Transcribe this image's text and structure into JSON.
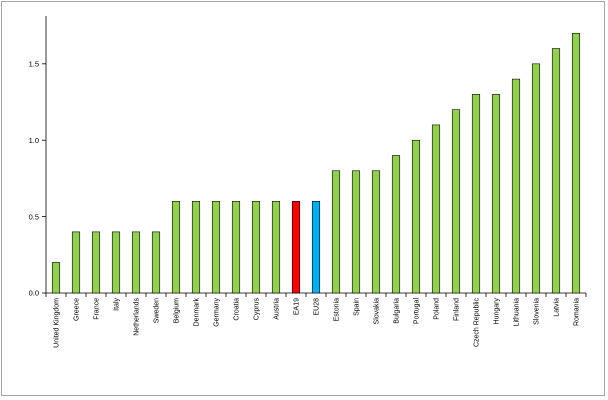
{
  "chart_data": {
    "type": "bar",
    "title": "",
    "xlabel": "",
    "ylabel": "",
    "ylim": [
      0,
      1.8
    ],
    "yticks": [
      "0.0",
      "0.5",
      "1.0",
      "1.5"
    ],
    "categories": [
      "United Kingdom",
      "Greece",
      "France",
      "Italy",
      "Netherlands",
      "Sweden",
      "Belgium",
      "Denmark",
      "Germany",
      "Croatia",
      "Cyprus",
      "Austria",
      "EA19",
      "EU28",
      "Estonia",
      "Spain",
      "Slovakia",
      "Bulgaria",
      "Portugal",
      "Poland",
      "Finland",
      "Czech Republic",
      "Hungary",
      "Lithuania",
      "Slovenia",
      "Latvia",
      "Romania"
    ],
    "values": [
      0.2,
      0.4,
      0.4,
      0.4,
      0.4,
      0.4,
      0.6,
      0.6,
      0.6,
      0.6,
      0.6,
      0.6,
      0.6,
      0.6,
      0.8,
      0.8,
      0.8,
      0.9,
      1.0,
      1.1,
      1.2,
      1.3,
      1.3,
      1.4,
      1.5,
      1.6,
      1.7
    ],
    "bar_colors": {
      "default": "#92d050",
      "EA19": "#ff0000",
      "EU28": "#00b0f0",
      "outline": "#000000"
    },
    "grid": false,
    "legend": false
  }
}
